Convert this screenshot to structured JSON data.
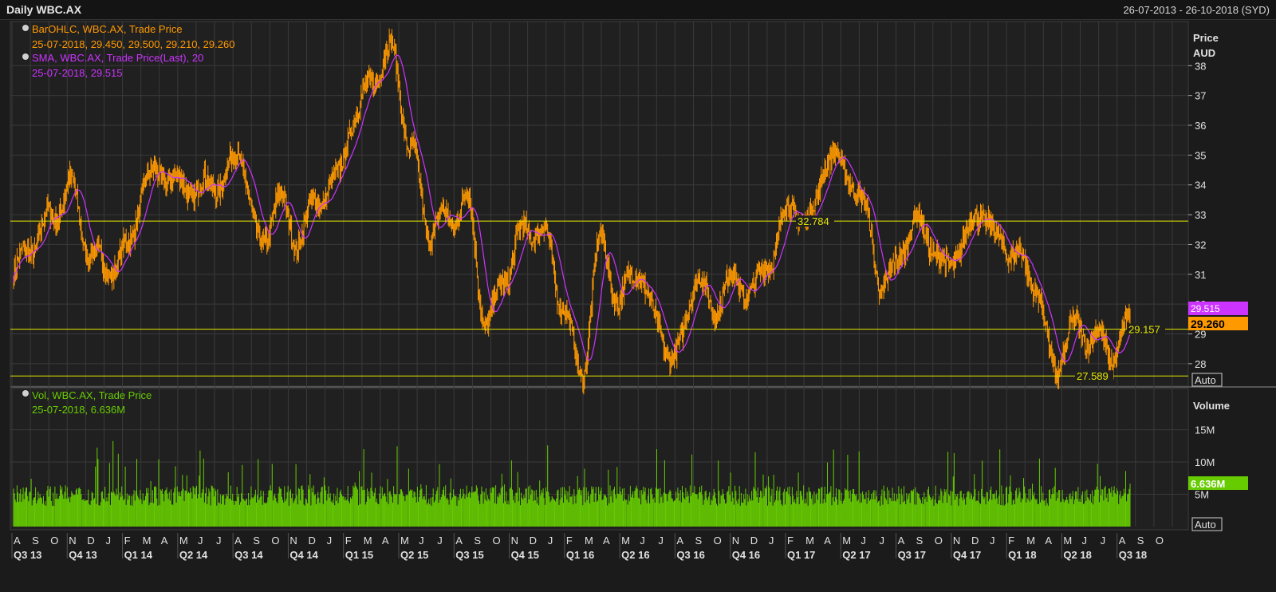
{
  "header": {
    "title": "Daily WBC.AX",
    "range": "26-07-2013 - 26-10-2018 (SYD)"
  },
  "legend": {
    "ohlc_title": "BarOHLC, WBC.AX, Trade Price",
    "ohlc_values": "25-07-2018, 29.450, 29.500, 29.210, 29.260",
    "sma_title": "SMA, WBC.AX, Trade Price(Last),  20",
    "sma_values": "25-07-2018, 29.515",
    "vol_title": "Vol, WBC.AX, Trade Price",
    "vol_values": "25-07-2018, 6.636M"
  },
  "price_axis": {
    "title1": "Price",
    "title2": "AUD",
    "ticks": [
      "38",
      "37",
      "36",
      "35",
      "34",
      "33",
      "32",
      "31",
      "30",
      "29",
      "28"
    ],
    "auto_label": "Auto"
  },
  "volume_axis": {
    "title": "Volume",
    "ticks": [
      "15M",
      "10M",
      "5M"
    ],
    "auto_label": "Auto"
  },
  "tags": {
    "sma_last": "29.515",
    "close_last": "29.260",
    "vol_last": "6.636M"
  },
  "hlines": [
    {
      "label": "32.784",
      "value": 32.784
    },
    {
      "label": "29.157",
      "value": 29.157
    },
    {
      "label": "27.589",
      "value": 27.589
    }
  ],
  "month_labels": [
    "A",
    "S",
    "O",
    "N",
    "D",
    "J",
    "F",
    "M",
    "A",
    "M",
    "J",
    "J",
    "A",
    "S",
    "O",
    "N",
    "D",
    "J",
    "F",
    "M",
    "A",
    "M",
    "J",
    "J",
    "A",
    "S",
    "O",
    "N",
    "D",
    "J",
    "F",
    "M",
    "A",
    "M",
    "J",
    "J",
    "A",
    "S",
    "O",
    "N",
    "D",
    "J",
    "F",
    "M",
    "A",
    "M",
    "J",
    "J",
    "A",
    "S",
    "O",
    "N",
    "D",
    "J",
    "F",
    "M",
    "A",
    "M",
    "J",
    "J",
    "A",
    "S",
    "O"
  ],
  "quarter_labels": [
    "Q3 13",
    "Q4 13",
    "Q1 14",
    "Q2 14",
    "Q3 14",
    "Q4 14",
    "Q1 15",
    "Q2 15",
    "Q3 15",
    "Q4 15",
    "Q1 16",
    "Q2 16",
    "Q3 16",
    "Q4 16",
    "Q1 17",
    "Q2 17",
    "Q3 17",
    "Q4 17",
    "Q1 18",
    "Q2 18",
    "Q3 18"
  ],
  "colors": {
    "ohlc": "#ff9900",
    "sma": "#cc33ff",
    "volume": "#66cc00",
    "hline": "#e6e600",
    "grid": "#3a3a3a",
    "text": "#e0e0e0"
  },
  "chart_data": {
    "type": "line",
    "ticker": "WBC.AX",
    "frequency": "daily",
    "price_ylim": [
      27.3,
      39.4
    ],
    "volume_ylim_millions": [
      0,
      21
    ],
    "monthly_close": [
      [
        "2013-08",
        31.0
      ],
      [
        "2013-09",
        31.6
      ],
      [
        "2013-10",
        32.6
      ],
      [
        "2013-11",
        34.2
      ],
      [
        "2013-12",
        32.3
      ],
      [
        "2014-01",
        31.2
      ],
      [
        "2014-02",
        31.4
      ],
      [
        "2014-03",
        33.8
      ],
      [
        "2014-04",
        34.6
      ],
      [
        "2014-05",
        34.4
      ],
      [
        "2014-06",
        34.0
      ],
      [
        "2014-07",
        33.8
      ],
      [
        "2014-08",
        34.6
      ],
      [
        "2014-09",
        32.0
      ],
      [
        "2014-10",
        34.0
      ],
      [
        "2014-11",
        32.4
      ],
      [
        "2014-12",
        33.1
      ],
      [
        "2015-01",
        33.6
      ],
      [
        "2015-02",
        36.3
      ],
      [
        "2015-03",
        38.1
      ],
      [
        "2015-04",
        38.8
      ],
      [
        "2015-05",
        34.8
      ],
      [
        "2015-06",
        32.0
      ],
      [
        "2015-07",
        32.9
      ],
      [
        "2015-08",
        33.8
      ],
      [
        "2015-09",
        29.6
      ],
      [
        "2015-10",
        30.8
      ],
      [
        "2015-11",
        32.0
      ],
      [
        "2015-12",
        32.3
      ],
      [
        "2016-01",
        30.5
      ],
      [
        "2016-02",
        28.0
      ],
      [
        "2016-03",
        31.9
      ],
      [
        "2016-04",
        29.6
      ],
      [
        "2016-05",
        31.0
      ],
      [
        "2016-06",
        29.6
      ],
      [
        "2016-07",
        28.5
      ],
      [
        "2016-08",
        30.8
      ],
      [
        "2016-09",
        29.4
      ],
      [
        "2016-10",
        30.6
      ],
      [
        "2016-11",
        30.7
      ],
      [
        "2016-12",
        32.0
      ],
      [
        "2017-01",
        33.3
      ],
      [
        "2017-02",
        32.2
      ],
      [
        "2017-03",
        34.6
      ],
      [
        "2017-04",
        34.8
      ],
      [
        "2017-05",
        33.6
      ],
      [
        "2017-06",
        30.4
      ],
      [
        "2017-07",
        31.6
      ],
      [
        "2017-08",
        32.4
      ],
      [
        "2017-09",
        31.4
      ],
      [
        "2017-10",
        32.3
      ],
      [
        "2017-11",
        33.3
      ],
      [
        "2017-12",
        31.8
      ],
      [
        "2018-01",
        31.2
      ],
      [
        "2018-02",
        30.8
      ],
      [
        "2018-03",
        28.3
      ],
      [
        "2018-04",
        29.4
      ],
      [
        "2018-05",
        28.6
      ],
      [
        "2018-06",
        27.9
      ],
      [
        "2018-07",
        29.3
      ]
    ],
    "last_bar": {
      "date": "25-07-2018",
      "open": 29.45,
      "high": 29.5,
      "low": 29.21,
      "close": 29.26,
      "sma20": 29.515,
      "volume_millions": 6.636
    },
    "horizontal_lines": [
      32.784,
      29.157,
      27.589
    ]
  }
}
